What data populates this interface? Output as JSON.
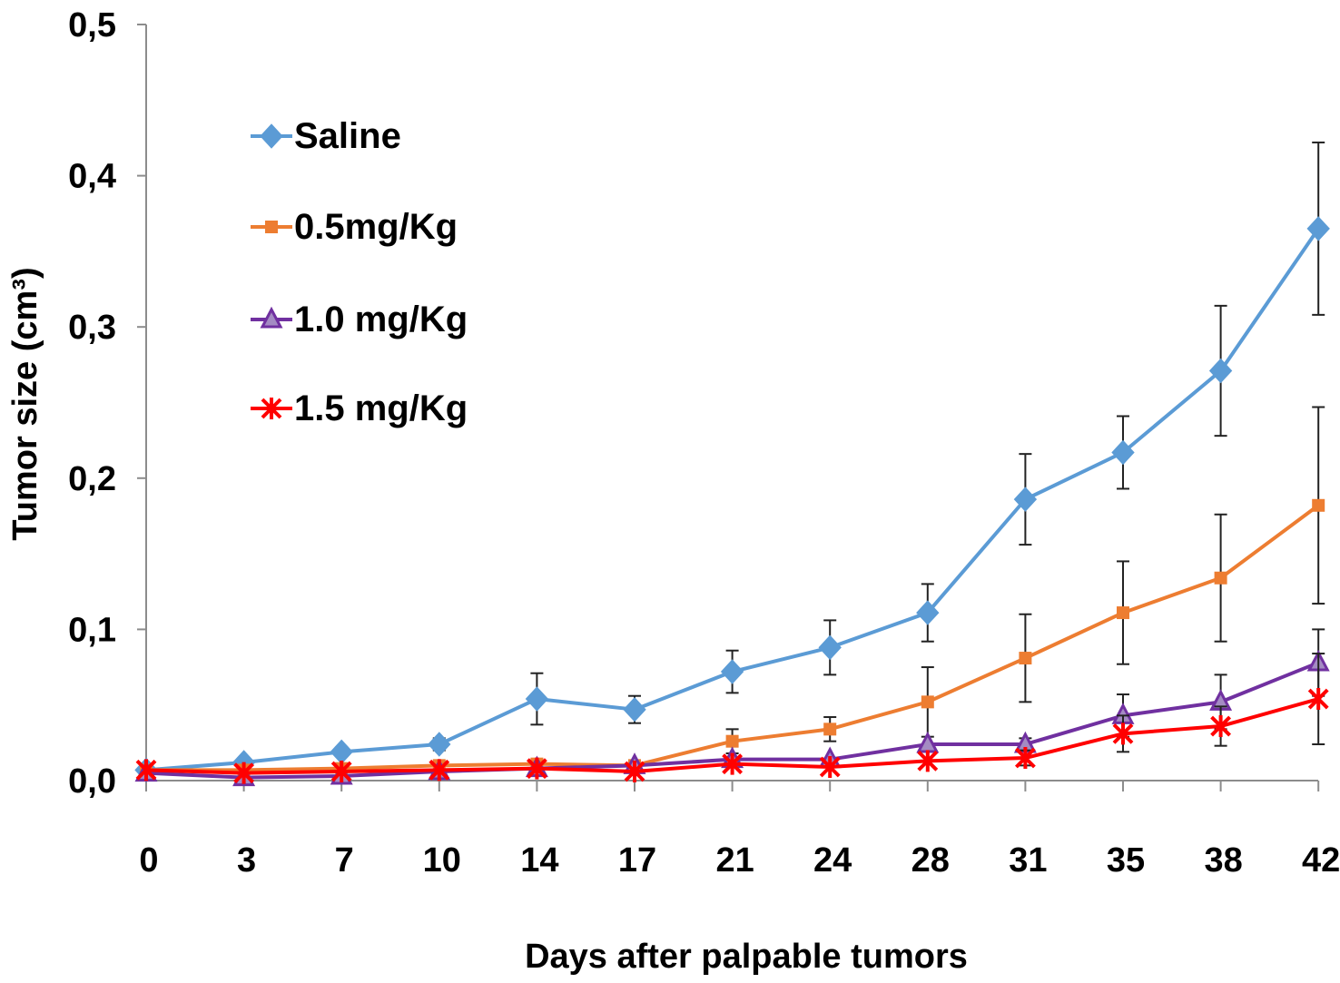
{
  "chart_data": {
    "type": "line",
    "title": "",
    "xlabel": "Days after palpable tumors",
    "ylabel": "Tumor size (cm³)",
    "categories": [
      "0",
      "3",
      "7",
      "10",
      "14",
      "17",
      "21",
      "24",
      "28",
      "31",
      "35",
      "38",
      "42"
    ],
    "y_ticks": [
      "0,0",
      "0,1",
      "0,2",
      "0,3",
      "0,4",
      "0,5"
    ],
    "ylim": [
      0,
      0.5
    ],
    "grid": false,
    "legend_position": "top-left",
    "series": [
      {
        "name": "Saline",
        "color": "#5B9BD5",
        "marker": "diamond",
        "values": [
          0.007,
          0.012,
          0.019,
          0.024,
          0.054,
          0.047,
          0.072,
          0.088,
          0.111,
          0.186,
          0.217,
          0.271,
          0.365
        ],
        "errors": [
          0,
          0,
          0.003,
          0.004,
          0.017,
          0.009,
          0.014,
          0.018,
          0.019,
          0.03,
          0.024,
          0.043,
          0.057
        ]
      },
      {
        "name": "0.5mg/Kg",
        "color": "#ED7D31",
        "marker": "square",
        "values": [
          0.007,
          0.007,
          0.008,
          0.01,
          0.011,
          0.01,
          0.026,
          0.034,
          0.052,
          0.081,
          0.111,
          0.134,
          0.182
        ],
        "errors": [
          0,
          0,
          0,
          0,
          0,
          0,
          0.008,
          0.008,
          0.023,
          0.029,
          0.034,
          0.042,
          0.065
        ]
      },
      {
        "name": "1.0 mg/Kg",
        "color": "#7030A0",
        "marker": "triangle",
        "values": [
          0.005,
          0.002,
          0.003,
          0.006,
          0.008,
          0.01,
          0.014,
          0.014,
          0.024,
          0.024,
          0.043,
          0.052,
          0.078
        ],
        "errors": [
          0,
          0,
          0,
          0,
          0,
          0,
          0,
          0,
          0,
          0.004,
          0.014,
          0.018,
          0.022
        ]
      },
      {
        "name": "1.5 mg/Kg",
        "color": "#FF0000",
        "marker": "x",
        "values": [
          0.007,
          0.005,
          0.006,
          0.007,
          0.008,
          0.006,
          0.011,
          0.009,
          0.013,
          0.015,
          0.031,
          0.036,
          0.054
        ],
        "errors": [
          0,
          0,
          0,
          0,
          0,
          0,
          0,
          0,
          0,
          0.005,
          0.012,
          0.013,
          0.03
        ]
      }
    ]
  }
}
